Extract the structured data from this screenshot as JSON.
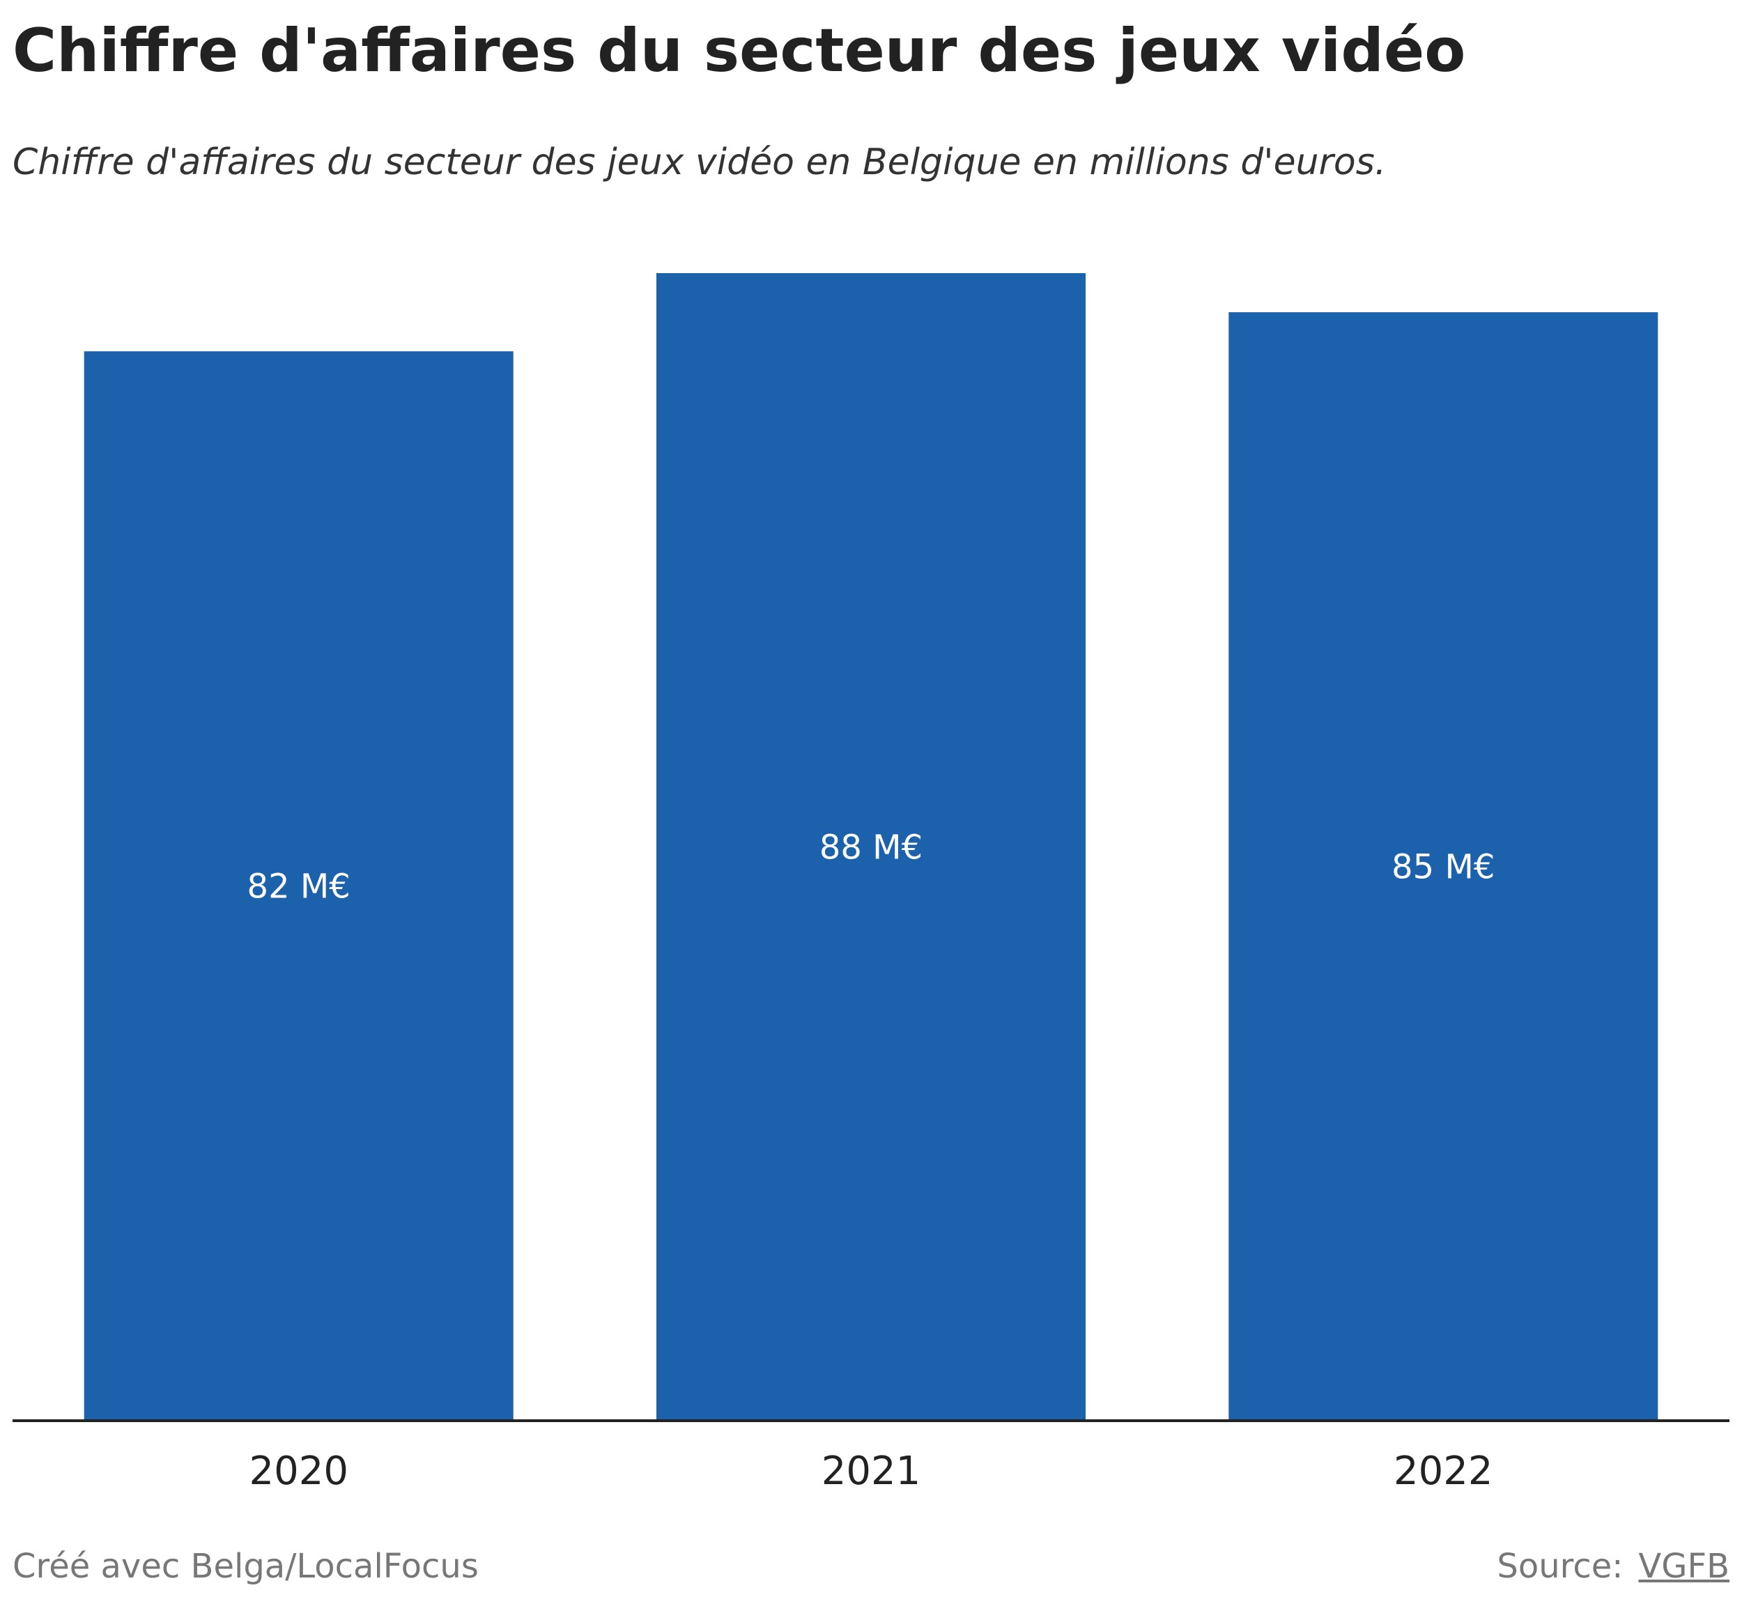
{
  "header": {
    "title": "Chiffre d'affaires du secteur des jeux vidéo",
    "subtitle": "Chiffre d'affaires du secteur des jeux vidéo en Belgique en millions d'euros."
  },
  "footer": {
    "credit": "Créé avec Belga/LocalFocus",
    "source_label": "Source:",
    "source_name": "VGFB"
  },
  "colors": {
    "bar": "#1b61ab",
    "label": "#ffffff",
    "axis": "#222222"
  },
  "chart_data": {
    "type": "bar",
    "title": "Chiffre d'affaires du secteur des jeux vidéo",
    "subtitle": "Chiffre d'affaires du secteur des jeux vidéo en Belgique en millions d'euros.",
    "categories": [
      "2020",
      "2021",
      "2022"
    ],
    "values": [
      82,
      88,
      85
    ],
    "data_labels": [
      "82 M€",
      "88 M€",
      "85 M€"
    ],
    "xlabel": "",
    "ylabel": "",
    "ylim": [
      0,
      88
    ],
    "grid": false,
    "legend": "none"
  }
}
